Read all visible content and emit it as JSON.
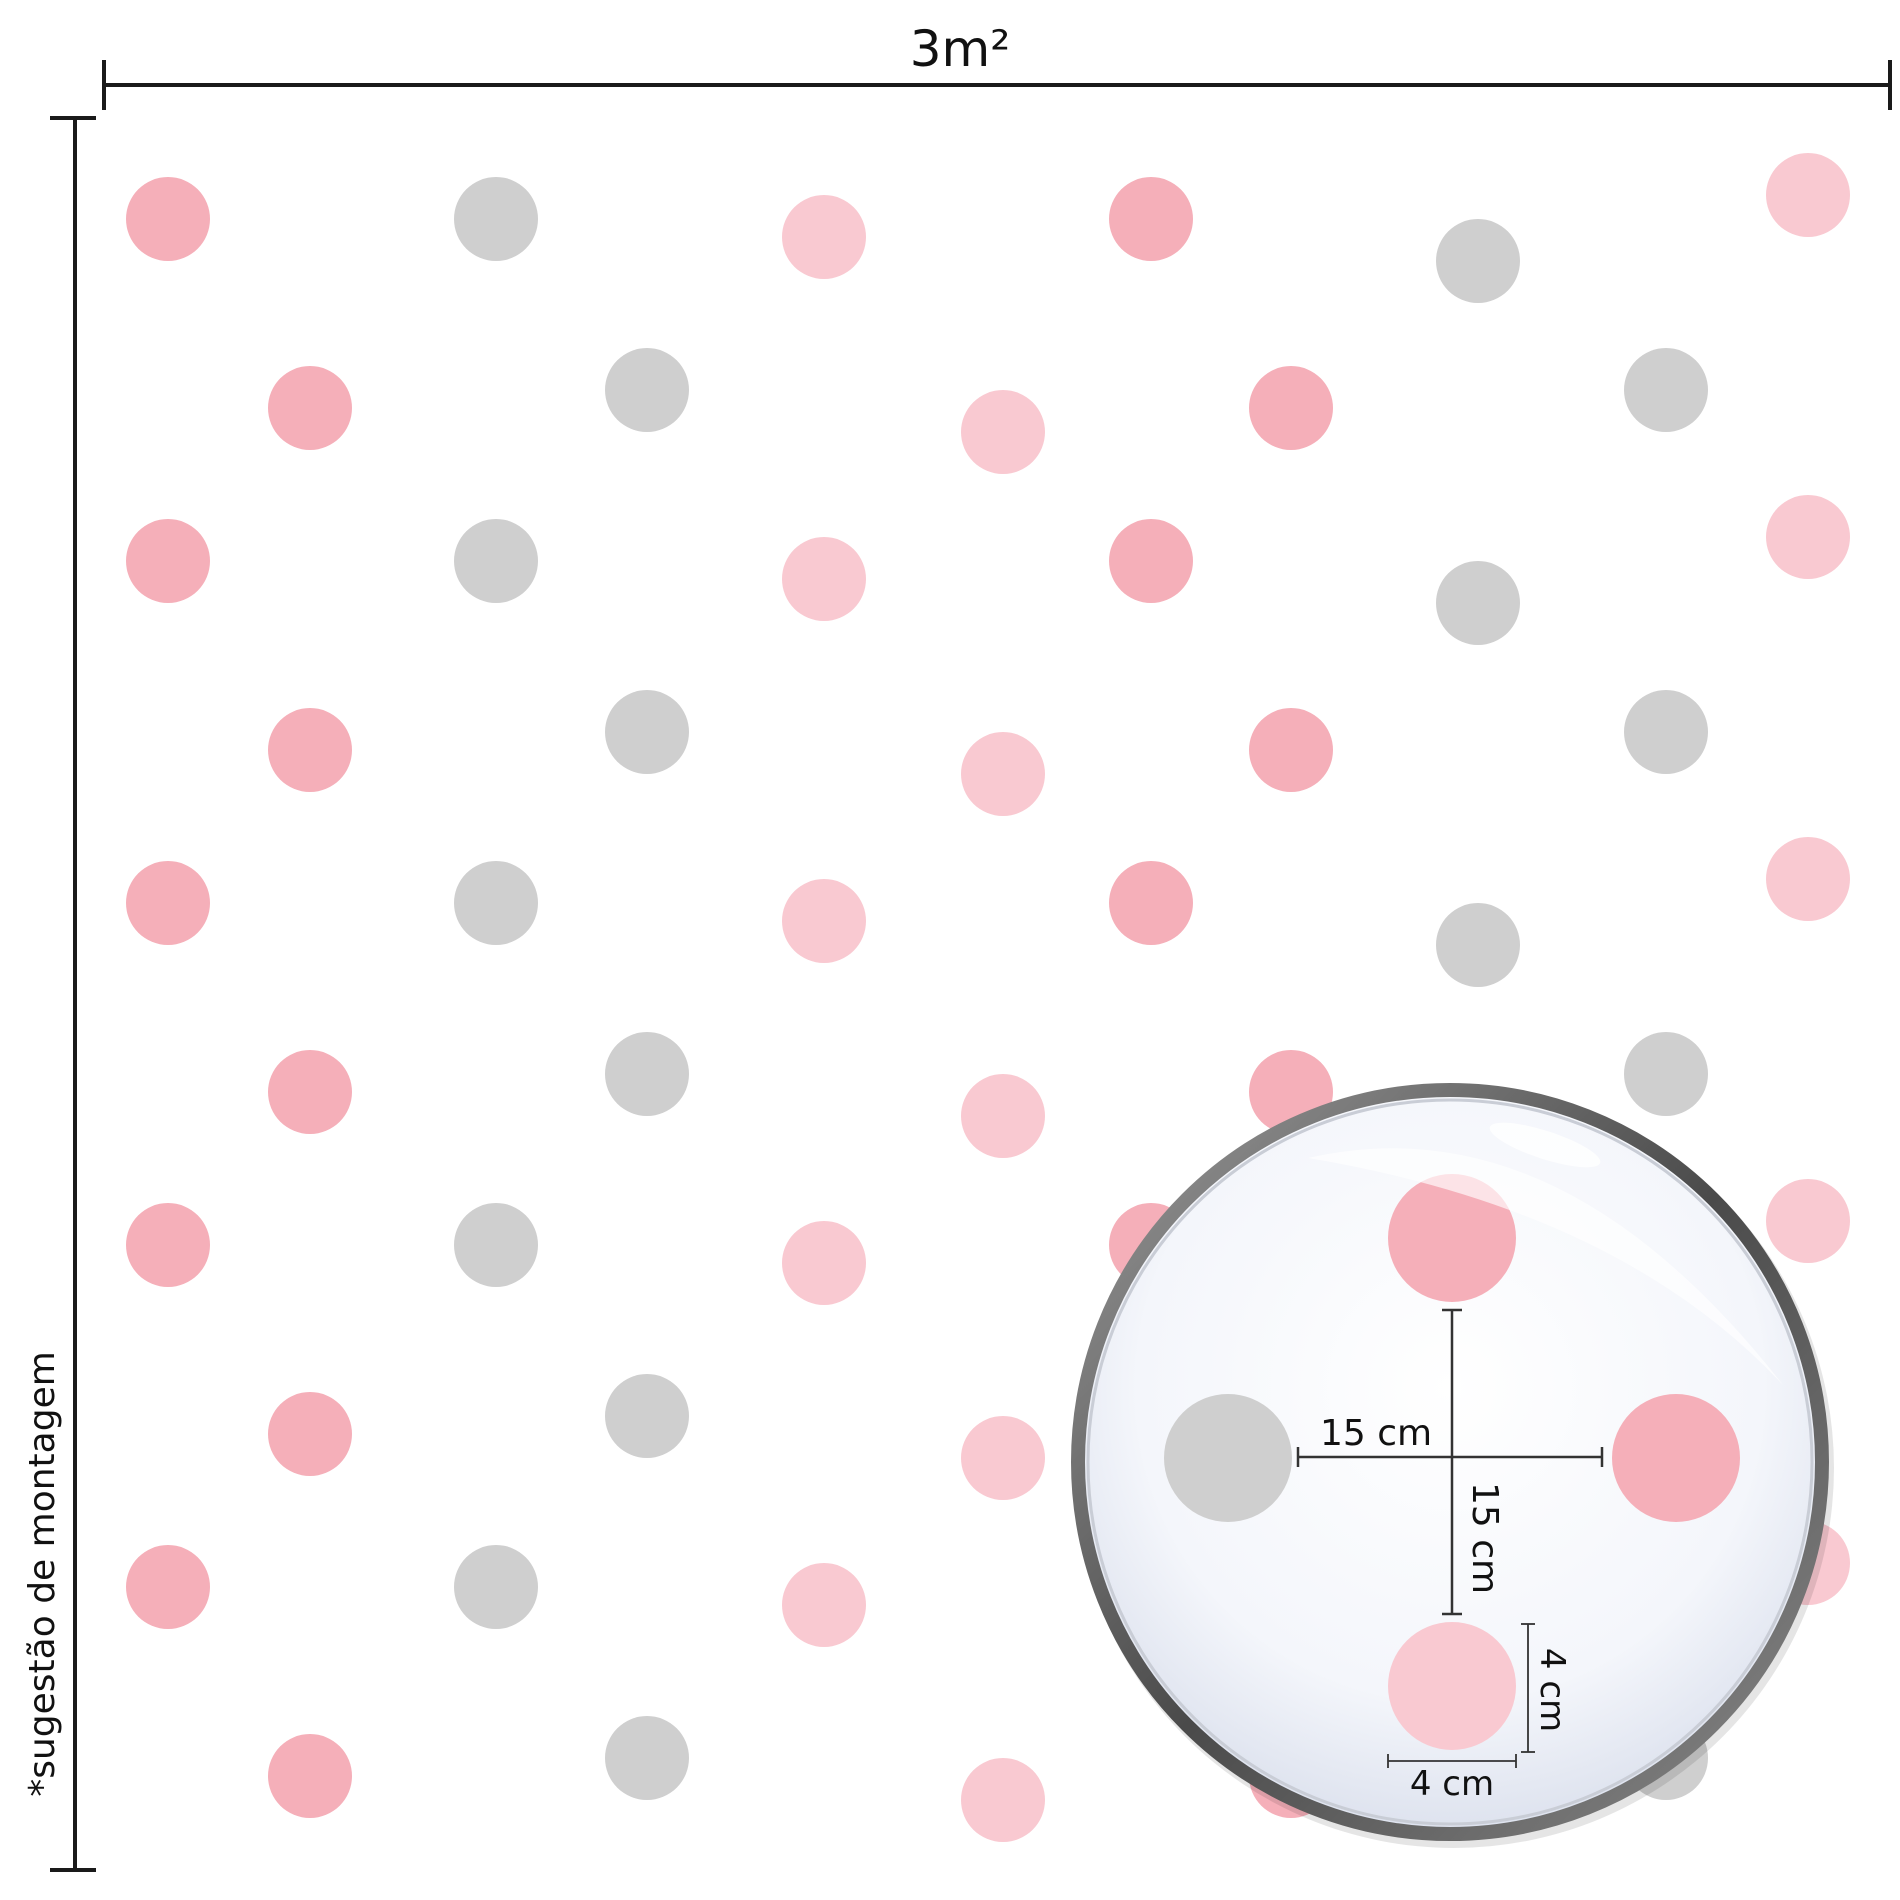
{
  "colors": {
    "rose": "#f5afb9",
    "light_pink": "#f9c9d1",
    "gray": "#cfcfcf",
    "ink": "#1a1a1a",
    "lens_rim": "#707070"
  },
  "width_dimension": {
    "label": "3m²"
  },
  "side_note": {
    "label": "*sugestão de montagem"
  },
  "zoom_lens": {
    "spacing_horizontal_label": "15 cm",
    "spacing_vertical_label": "15 cm",
    "dot_width_label": "4 cm",
    "dot_height_label": "4 cm"
  },
  "pattern": {
    "dot_diameter_cm": 4,
    "columns": [
      {
        "color": "rose"
      },
      {
        "color": "rose"
      },
      {
        "color": "gray"
      },
      {
        "color": "gray"
      },
      {
        "color": "light_pink"
      },
      {
        "color": "light_pink"
      },
      {
        "color": "rose"
      },
      {
        "color": "rose"
      },
      {
        "color": "gray"
      },
      {
        "color": "gray"
      },
      {
        "color": "light_pink"
      }
    ]
  }
}
